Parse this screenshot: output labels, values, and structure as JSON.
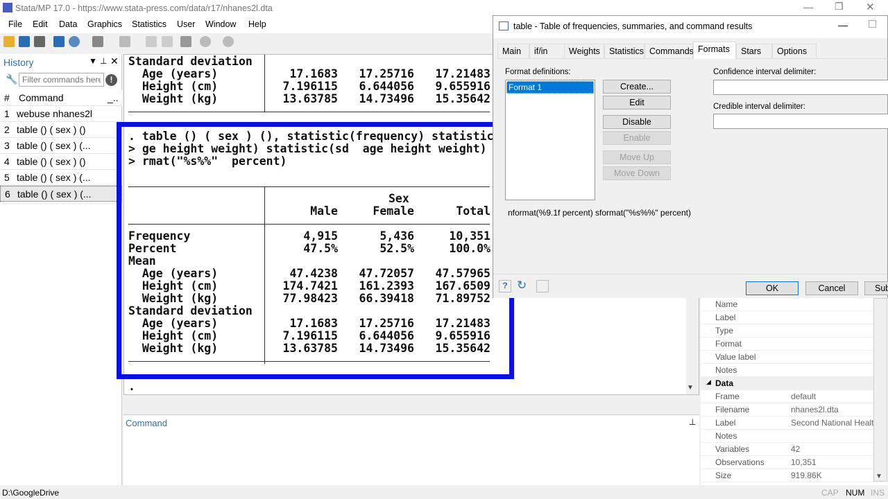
{
  "window": {
    "title": "Stata/MP 17.0 - https://www.stata-press.com/data/r17/nhanes2l.dta"
  },
  "menu": [
    "File",
    "Edit",
    "Data",
    "Graphics",
    "Statistics",
    "User",
    "Window",
    "Help"
  ],
  "history": {
    "title": "History",
    "filter_placeholder": "Filter commands here",
    "col_num": "#",
    "col_cmd": "Command",
    "col_extra": "_..",
    "items": [
      {
        "n": "1",
        "c": "webuse nhanes2l"
      },
      {
        "n": "2",
        "c": "table () ( sex ) ()"
      },
      {
        "n": "3",
        "c": "table () ( sex ) (..."
      },
      {
        "n": "4",
        "c": "table () ( sex ) ()"
      },
      {
        "n": "5",
        "c": "table () ( sex ) (..."
      },
      {
        "n": "6",
        "c": "table () ( sex ) (..."
      }
    ]
  },
  "results": {
    "top": [
      {
        "label": "Standard deviation",
        "vals": [
          "",
          "",
          ""
        ]
      },
      {
        "label": "  Age (years)",
        "vals": [
          "17.1683",
          "17.25716",
          "17.21483"
        ]
      },
      {
        "label": "  Height (cm)",
        "vals": [
          "7.196115",
          "6.644056",
          "9.655916"
        ]
      },
      {
        "label": "  Weight (kg)",
        "vals": [
          "13.63785",
          "14.73496",
          "15.35642"
        ]
      }
    ],
    "command_lines": [
      ". table () ( sex ) (), statistic(frequency) statistic",
      "> ge height weight) statistic(sd  age height weight)",
      "> rmat(\"%s%%\"  percent)"
    ],
    "header_group": "Sex",
    "headers": [
      "Male",
      "Female",
      "Total"
    ],
    "rows": [
      {
        "label": "Frequency",
        "vals": [
          "4,915",
          "5,436",
          "10,351"
        ]
      },
      {
        "label": "Percent",
        "vals": [
          "47.5%",
          "52.5%",
          "100.0%"
        ]
      },
      {
        "label": "Mean",
        "vals": [
          "",
          "",
          ""
        ]
      },
      {
        "label": "  Age (years)",
        "vals": [
          "47.4238",
          "47.72057",
          "47.57965"
        ]
      },
      {
        "label": "  Height (cm)",
        "vals": [
          "174.7421",
          "161.2393",
          "167.6509"
        ]
      },
      {
        "label": "  Weight (kg)",
        "vals": [
          "77.98423",
          "66.39418",
          "71.89752"
        ]
      },
      {
        "label": "Standard deviation",
        "vals": [
          "",
          "",
          ""
        ]
      },
      {
        "label": "  Age (years)",
        "vals": [
          "17.1683",
          "17.25716",
          "17.21483"
        ]
      },
      {
        "label": "  Height (cm)",
        "vals": [
          "7.196115",
          "6.644056",
          "9.655916"
        ]
      },
      {
        "label": "  Weight (kg)",
        "vals": [
          "13.63785",
          "14.73496",
          "15.35642"
        ]
      }
    ],
    "prompt": "."
  },
  "command": {
    "title": "Command"
  },
  "dialog": {
    "title": "table - Table of frequencies, summaries, and command results",
    "tabs": [
      "Main",
      "if/in",
      "Weights",
      "Statistics",
      "Commands",
      "Formats",
      "Stars",
      "Options"
    ],
    "active_tab": "Formats",
    "format_defs_label": "Format definitions:",
    "format_items": [
      "Format 1"
    ],
    "buttons": {
      "create": "Create...",
      "edit": "Edit",
      "disable": "Disable",
      "enable": "Enable",
      "move_up": "Move Up",
      "move_down": "Move Down"
    },
    "ci_label": "Confidence interval delimiter:",
    "ci_value": "",
    "cred_label": "Credible interval delimiter:",
    "cred_value": "",
    "preview": "nformat(%9.1f  percent) sformat(\"%s%%\"  percent)",
    "ok": "OK",
    "cancel": "Cancel",
    "submit": "Sub"
  },
  "properties": {
    "variable": [
      {
        "k": "Name",
        "v": ""
      },
      {
        "k": "Label",
        "v": ""
      },
      {
        "k": "Type",
        "v": ""
      },
      {
        "k": "Format",
        "v": ""
      },
      {
        "k": "Value label",
        "v": ""
      },
      {
        "k": "Notes",
        "v": ""
      }
    ],
    "data_header": "Data",
    "data": [
      {
        "k": "Frame",
        "v": "default"
      },
      {
        "k": "Filename",
        "v": "nhanes2l.dta"
      },
      {
        "k": "Label",
        "v": "Second National Health"
      },
      {
        "k": "Notes",
        "v": ""
      },
      {
        "k": "Variables",
        "v": "42"
      },
      {
        "k": "Observations",
        "v": "10,351"
      },
      {
        "k": "Size",
        "v": "919.86K"
      }
    ]
  },
  "status": {
    "path": "D:\\GoogleDrive",
    "cap": "CAP",
    "num": "NUM",
    "ins": "INS"
  },
  "colors": {
    "highlight_box": "#0a10e0",
    "selection": "#0078d7"
  }
}
